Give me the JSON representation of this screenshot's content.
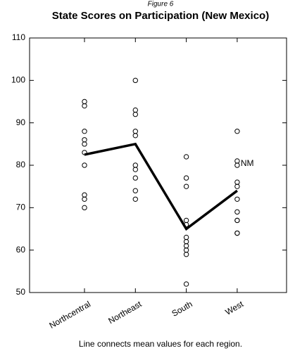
{
  "chart_data": {
    "type": "scatter",
    "subtitle": "Figure 6",
    "title": "State Scores on Participation (New Mexico)",
    "categories": [
      "Northcentral",
      "Northeast",
      "South",
      "West"
    ],
    "values": [
      [
        95,
        94,
        88,
        86,
        85,
        83,
        80,
        73,
        72,
        70
      ],
      [
        100,
        93,
        92,
        88,
        87,
        80,
        79,
        77,
        74,
        72
      ],
      [
        82,
        77,
        75,
        67,
        66,
        63,
        62,
        61,
        60,
        59,
        52
      ],
      [
        88,
        81,
        80,
        76,
        75,
        72,
        69,
        67,
        67,
        64,
        64
      ]
    ],
    "means": [
      82.5,
      85,
      65,
      74
    ],
    "annotation": {
      "text": "NM",
      "category": "West",
      "value": 80
    },
    "caption": "Line connects mean values for each region.",
    "ylim": [
      50,
      110
    ],
    "yticks": [
      50,
      60,
      70,
      80,
      90,
      100,
      110
    ]
  }
}
